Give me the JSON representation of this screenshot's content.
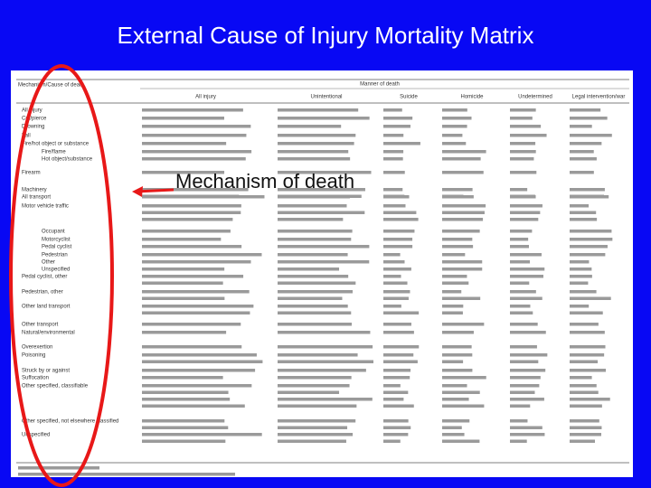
{
  "header": {
    "title": "External Cause of Injury Mortality Matrix"
  },
  "annotation": "Mechanism of death",
  "table": {
    "corner": "Mechanism/Cause of death",
    "group_header": "Manner of death",
    "columns": [
      "All injury",
      "Unintentional",
      "Suicide",
      "Homicide",
      "Undetermined",
      "Legal intervention/war"
    ],
    "rows": [
      "All injury",
      "Cut/pierce",
      "Drowning",
      "Fall",
      "Fire/hot object or substance",
      "Fire/flame",
      "Hot object/substance",
      "Firearm",
      "Machinery",
      "All transport",
      "Motor vehicle traffic",
      "Occupant",
      "Motorcyclist",
      "Pedal cyclist",
      "Pedestrian",
      "Other",
      "Unspecified",
      "Pedal cyclist, other",
      "Pedestrian, other",
      "Other land transport",
      "Other transport",
      "Natural/environmental",
      "Overexertion",
      "Poisoning",
      "Struck by or against",
      "Suffocation",
      "Other specified, classifiable",
      "Other specified, not elsewhere classified",
      "Unspecified"
    ]
  }
}
